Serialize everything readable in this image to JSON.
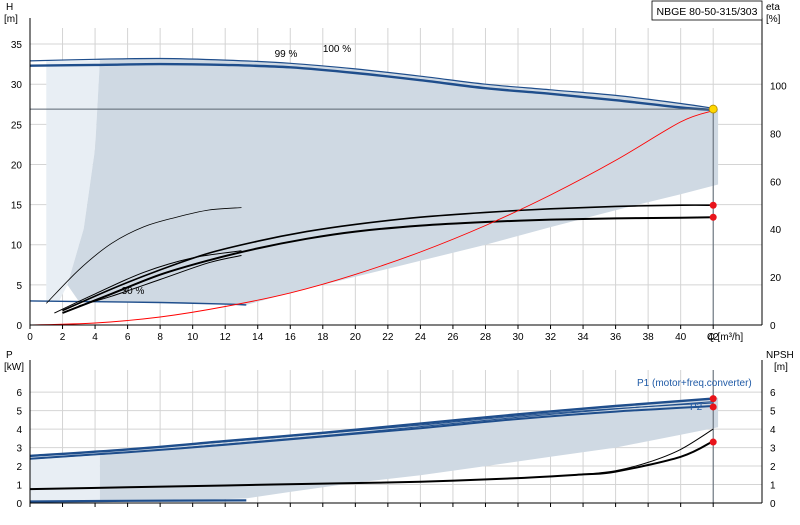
{
  "model": "NBGE 80-50-315/303",
  "top": {
    "y_label": "H",
    "y_unit": "[m]",
    "right_label": "eta",
    "right_unit": "[%]",
    "x_label": "Q [m³/h]",
    "x_ticks": [
      0,
      2,
      4,
      6,
      8,
      10,
      12,
      14,
      16,
      18,
      20,
      22,
      24,
      26,
      28,
      30,
      32,
      34,
      36,
      38,
      40,
      42
    ],
    "y_ticks": [
      0,
      5,
      10,
      15,
      20,
      25,
      30,
      35
    ],
    "eta_ticks": [
      0,
      20,
      40,
      60,
      80,
      100
    ],
    "xlim": [
      0,
      45
    ],
    "ylim": [
      0,
      37
    ],
    "eta_lim": [
      0,
      124
    ],
    "label_99": "99 %",
    "label_100": "100 %",
    "label_30": "30 %"
  },
  "bottom": {
    "y_label": "P",
    "y_unit": "[kW]",
    "right_label": "NPSH",
    "right_unit": "[m]",
    "y_ticks": [
      0,
      1,
      2,
      3,
      4,
      5,
      6
    ],
    "npsh_ticks": [
      0,
      1,
      2,
      3,
      4,
      5,
      6
    ],
    "ylim": [
      0,
      7.2
    ],
    "npsh_lim": [
      0,
      7.2
    ],
    "p1_label": "P1 (motor+freq.converter)",
    "p2_label": "P2"
  },
  "colors": {
    "envelope_fill": "#cfd9e3",
    "envelope_light": "#e8eef4",
    "curve_blue": "#1f4e8c",
    "system_curve": "#ff0000",
    "duty_point": "#ffd700",
    "marker": "#e8141b",
    "grid": "#d4d4d4",
    "axis": "#000000"
  },
  "chart_data": [
    {
      "type": "line",
      "title": "NBGE 80-50-315/303",
      "xlabel": "Q [m³/h]",
      "ylabel": "H [m]",
      "y2label": "eta [%]",
      "xlim": [
        0,
        45
      ],
      "ylim": [
        0,
        37
      ],
      "y2lim": [
        0,
        124
      ],
      "grid": true,
      "series": [
        {
          "name": "100 %",
          "axis": "H",
          "x": [
            0,
            4,
            8,
            12,
            16,
            20,
            24,
            28,
            32,
            36,
            40,
            42
          ],
          "y": [
            32.9,
            33.1,
            33.2,
            33.0,
            32.6,
            31.9,
            31.0,
            30.0,
            29.3,
            28.6,
            27.6,
            27.0
          ]
        },
        {
          "name": "99 %",
          "axis": "H",
          "x": [
            0,
            4,
            8,
            12,
            16,
            20,
            24,
            28,
            32,
            36,
            40,
            42
          ],
          "y": [
            32.3,
            32.4,
            32.5,
            32.4,
            32.1,
            31.4,
            30.5,
            29.5,
            28.8,
            28.0,
            27.1,
            26.8
          ]
        },
        {
          "axis": "eta",
          "x": [
            2,
            5,
            8,
            11,
            14,
            17,
            20,
            24,
            28,
            32,
            36,
            40,
            42
          ],
          "y": [
            6,
            15,
            23,
            30,
            35,
            39,
            42,
            45,
            47,
            48.5,
            49.5,
            50,
            50
          ]
        },
        {
          "axis": "eta",
          "x": [
            2,
            5,
            8,
            11,
            14,
            17,
            20,
            24,
            28,
            32,
            36,
            40,
            42
          ],
          "y": [
            5,
            13,
            21,
            27,
            32,
            36,
            39,
            41.5,
            43,
            44,
            44.5,
            44.8,
            45
          ]
        },
        {
          "axis": "eta",
          "x": [
            1,
            3,
            5,
            7,
            9,
            11,
            13
          ],
          "y": [
            9,
            23,
            34,
            41,
            45,
            48,
            49
          ]
        },
        {
          "axis": "eta",
          "x": [
            1.5,
            4,
            7,
            10,
            13
          ],
          "y": [
            5,
            13,
            22,
            28,
            31
          ]
        },
        {
          "axis": "eta",
          "x": [
            3,
            5,
            8,
            11,
            13
          ],
          "y": [
            8,
            12,
            19,
            26,
            29
          ]
        },
        {
          "name": "30 %",
          "axis": "H",
          "x": [
            0,
            4,
            8,
            12,
            13.3
          ],
          "y": [
            3.0,
            2.9,
            2.8,
            2.6,
            2.5
          ]
        },
        {
          "name": "system curve",
          "axis": "H",
          "x": [
            0,
            4,
            8,
            12,
            16,
            20,
            24,
            28,
            32,
            36,
            40,
            42
          ],
          "y": [
            0,
            0.25,
            1.0,
            2.3,
            4.0,
            6.3,
            9.1,
            12.4,
            16.2,
            20.5,
            25.3,
            26.7
          ]
        }
      ],
      "points": [
        {
          "name": "duty point",
          "x": 42,
          "y": 26.9,
          "axis": "H"
        },
        {
          "name": "eta point 1",
          "x": 42,
          "y": 50,
          "axis": "eta"
        },
        {
          "name": "eta point 2",
          "x": 42,
          "y": 45,
          "axis": "eta"
        }
      ]
    },
    {
      "type": "line",
      "xlabel": "Q [m³/h]",
      "ylabel": "P [kW]",
      "y2label": "NPSH [m]",
      "xlim": [
        0,
        45
      ],
      "ylim": [
        0,
        7.2
      ],
      "y2lim": [
        0,
        7.2
      ],
      "grid": true,
      "series": [
        {
          "name": "P1 (motor+freq.converter)",
          "axis": "P",
          "x": [
            0,
            6,
            12,
            18,
            24,
            30,
            36,
            42
          ],
          "y": [
            2.55,
            2.9,
            3.35,
            3.8,
            4.3,
            4.8,
            5.25,
            5.65
          ]
        },
        {
          "name": "P2",
          "axis": "P",
          "x": [
            0,
            6,
            12,
            18,
            24,
            30,
            36,
            42
          ],
          "y": [
            2.4,
            2.75,
            3.15,
            3.6,
            4.05,
            4.55,
            4.95,
            5.25
          ]
        },
        {
          "axis": "P",
          "x": [
            0,
            6,
            13.3
          ],
          "y": [
            0.08,
            0.12,
            0.14
          ]
        },
        {
          "axis": "NPSH",
          "x": [
            0,
            6,
            12,
            18,
            24,
            30,
            34,
            36,
            40,
            42
          ],
          "y": [
            0.75,
            0.85,
            0.95,
            1.05,
            1.15,
            1.35,
            1.55,
            1.7,
            2.5,
            3.35
          ]
        },
        {
          "axis": "NPSH",
          "x": [
            34,
            36,
            38,
            40,
            42
          ],
          "y": [
            1.55,
            1.75,
            2.2,
            2.9,
            4.0
          ]
        }
      ],
      "points": [
        {
          "name": "P1 point",
          "x": 42,
          "y": 5.65,
          "axis": "P"
        },
        {
          "name": "P2 point",
          "x": 42,
          "y": 5.2,
          "axis": "P"
        },
        {
          "name": "NPSH point",
          "x": 42,
          "y": 3.3,
          "axis": "NPSH"
        }
      ]
    }
  ]
}
